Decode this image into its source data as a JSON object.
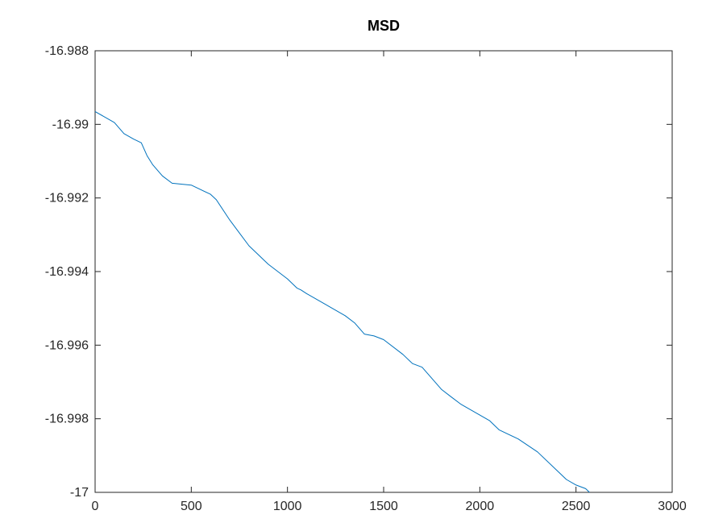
{
  "chart_data": {
    "type": "line",
    "title": "MSD",
    "xlabel": "",
    "ylabel": "",
    "xlim": [
      0,
      3000
    ],
    "ylim": [
      -17,
      -16.988
    ],
    "x_ticks": [
      0,
      500,
      1000,
      1500,
      2000,
      2500,
      3000
    ],
    "x_tick_labels": [
      "0",
      "500",
      "1000",
      "1500",
      "2000",
      "2500",
      "3000"
    ],
    "y_ticks": [
      -16.988,
      -16.99,
      -16.992,
      -16.994,
      -16.996,
      -16.998,
      -17
    ],
    "y_tick_labels": [
      "-16.988",
      "-16.99",
      "-16.992",
      "-16.994",
      "-16.996",
      "-16.998",
      "-17"
    ],
    "grid": false,
    "series": [
      {
        "color": "#0072bd",
        "x": [
          0,
          100,
          150,
          200,
          240,
          270,
          300,
          350,
          400,
          500,
          600,
          630,
          700,
          750,
          800,
          900,
          1000,
          1050,
          1070,
          1100,
          1200,
          1300,
          1350,
          1400,
          1450,
          1500,
          1600,
          1650,
          1700,
          1800,
          1850,
          1900,
          2000,
          2050,
          2100,
          2200,
          2300,
          2400,
          2450,
          2500,
          2550,
          2570
        ],
        "y": [
          -16.98965,
          -16.98995,
          -16.99025,
          -16.9904,
          -16.9905,
          -16.99085,
          -16.9911,
          -16.9914,
          -16.9916,
          -16.99165,
          -16.9919,
          -16.99205,
          -16.9926,
          -16.99295,
          -16.9933,
          -16.9938,
          -16.9942,
          -16.99445,
          -16.9945,
          -16.9946,
          -16.9949,
          -16.9952,
          -16.9954,
          -16.9957,
          -16.99575,
          -16.99585,
          -16.99625,
          -16.9965,
          -16.9966,
          -16.9972,
          -16.9974,
          -16.9976,
          -16.9979,
          -16.99805,
          -16.9983,
          -16.99855,
          -16.9989,
          -16.9994,
          -16.99965,
          -16.9998,
          -16.9999,
          -17.0
        ]
      }
    ]
  }
}
